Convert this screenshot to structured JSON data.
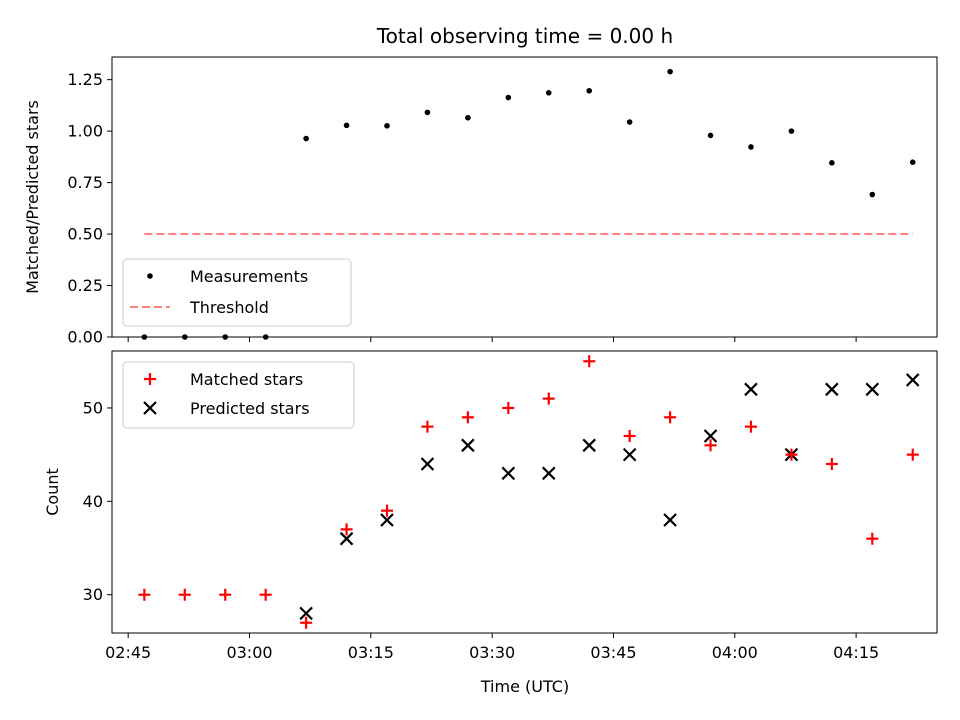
{
  "chart_data": [
    {
      "type": "scatter",
      "title": "Total observing time = 0.00 h",
      "ylabel": "Matched/Predicted stars",
      "xlabel": "",
      "ylim": [
        0,
        1.36
      ],
      "yticks": [
        0.0,
        0.25,
        0.5,
        0.75,
        1.0,
        1.25
      ],
      "ytick_labels": [
        "0.00",
        "0.25",
        "0.50",
        "0.75",
        "1.00",
        "1.25"
      ],
      "x": [
        "02:47",
        "02:52",
        "02:57",
        "03:02",
        "03:07",
        "03:12",
        "03:17",
        "03:22",
        "03:27",
        "03:32",
        "03:37",
        "03:42",
        "03:47",
        "03:52",
        "03:57",
        "04:02",
        "04:07",
        "04:12",
        "04:17",
        "04:22"
      ],
      "series": [
        {
          "name": "Measurements",
          "marker": "dot",
          "color": "#000000",
          "values": [
            0.0,
            0.0,
            0.0,
            0.0,
            0.964,
            1.028,
            1.026,
            1.091,
            1.065,
            1.163,
            1.186,
            1.196,
            1.044,
            1.289,
            0.979,
            0.923,
            1.0,
            0.846,
            0.692,
            0.849
          ]
        },
        {
          "name": "Threshold",
          "style": "dashed",
          "color": "#ff7f7f",
          "values": [
            0.5,
            0.5,
            0.5,
            0.5,
            0.5,
            0.5,
            0.5,
            0.5,
            0.5,
            0.5,
            0.5,
            0.5,
            0.5,
            0.5,
            0.5,
            0.5,
            0.5,
            0.5,
            0.5,
            0.5
          ]
        }
      ],
      "legend": "lower-left",
      "grid": false
    },
    {
      "type": "scatter",
      "title": "",
      "ylabel": "Count",
      "xlabel": "Time (UTC)",
      "xlim": [
        "02:43",
        "04:25"
      ],
      "xticks": [
        "02:45",
        "03:00",
        "03:15",
        "03:30",
        "03:45",
        "04:00",
        "04:15"
      ],
      "ylim": [
        25.9,
        56.1
      ],
      "yticks": [
        30,
        40,
        50
      ],
      "ytick_labels": [
        "30",
        "40",
        "50"
      ],
      "x": [
        "02:47",
        "02:52",
        "02:57",
        "03:02",
        "03:07",
        "03:12",
        "03:17",
        "03:22",
        "03:27",
        "03:32",
        "03:37",
        "03:42",
        "03:47",
        "03:52",
        "03:57",
        "04:02",
        "04:07",
        "04:12",
        "04:17",
        "04:22"
      ],
      "series": [
        {
          "name": "Matched stars",
          "marker": "plus",
          "color": "#ff0000",
          "values": [
            30,
            30,
            30,
            30,
            27,
            37,
            39,
            48,
            49,
            50,
            51,
            55,
            47,
            49,
            46,
            48,
            45,
            44,
            36,
            45
          ]
        },
        {
          "name": "Predicted stars",
          "marker": "x",
          "color": "#000000",
          "values": [
            null,
            null,
            null,
            null,
            28,
            36,
            38,
            44,
            46,
            43,
            43,
            46,
            45,
            38,
            47,
            52,
            45,
            52,
            52,
            53
          ]
        }
      ],
      "legend": "top-left",
      "grid": false
    }
  ]
}
